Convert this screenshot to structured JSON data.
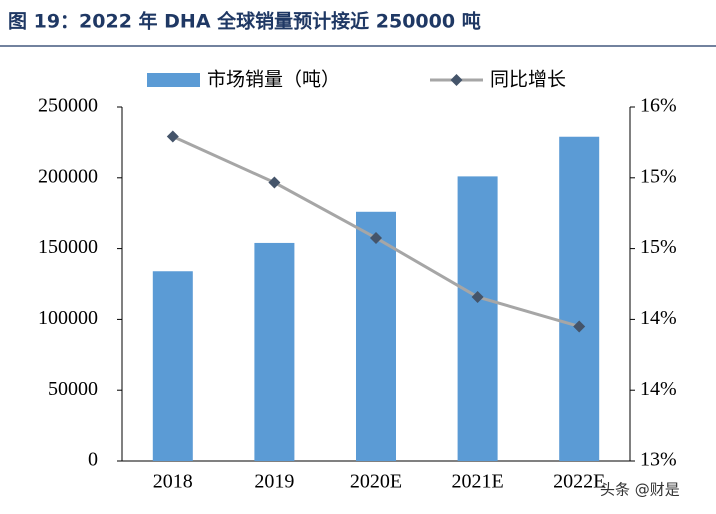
{
  "chart_data": {
    "type": "bar",
    "title": "图 19：2022 年 DHA 全球销量预计接近 250000 吨",
    "categories": [
      "2018",
      "2019",
      "2020E",
      "2021E",
      "2022E"
    ],
    "series": [
      {
        "name": "市场销量（吨）",
        "type": "bar",
        "color": "#5b9bd5",
        "values": [
          134000,
          154000,
          176000,
          201000,
          229000
        ]
      },
      {
        "name": "同比增长",
        "type": "line",
        "axis": "y2",
        "color": "#a6a6a6",
        "marker_color": "#44546a",
        "values": [
          15.75,
          15.36,
          14.89,
          14.39,
          14.14
        ]
      }
    ],
    "ylim": [
      0,
      250000
    ],
    "yticks": [
      0,
      50000,
      100000,
      150000,
      200000,
      250000
    ],
    "y2lim": [
      13,
      16
    ],
    "y2ticks": [
      {
        "value": 13,
        "label": "13%"
      },
      {
        "value": 13.6,
        "label": "14%"
      },
      {
        "value": 14.2,
        "label": "14%"
      },
      {
        "value": 14.8,
        "label": "15%"
      },
      {
        "value": 15.4,
        "label": "15%"
      },
      {
        "value": 16,
        "label": "16%"
      }
    ],
    "legend": "top"
  },
  "watermark": "头条 @财是"
}
